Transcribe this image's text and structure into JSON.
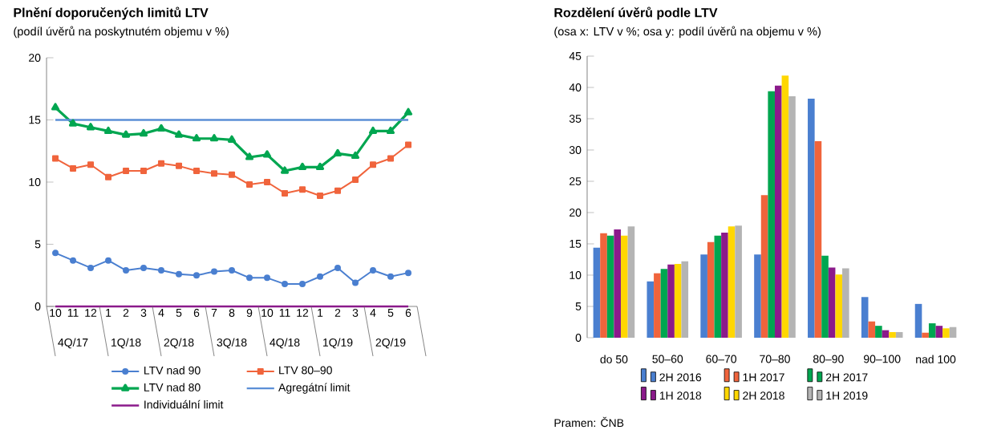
{
  "chart_data": [
    {
      "type": "line",
      "title": "Plnění doporučených limitů LTV",
      "subtitle": "(podíl úvěrů na poskytnutém objemu v %)",
      "categories": [
        "10",
        "11",
        "12",
        "1",
        "2",
        "3",
        "4",
        "5",
        "6",
        "7",
        "8",
        "9",
        "10",
        "11",
        "12",
        "1",
        "2",
        "3",
        "4",
        "5",
        "6"
      ],
      "annotations": [
        "4Q/17",
        "1Q/18",
        "2Q/18",
        "3Q/18",
        "4Q/18",
        "1Q/19",
        "2Q/19"
      ],
      "ylim": [
        0,
        20
      ],
      "yticks": [
        0,
        5,
        10,
        15,
        20
      ],
      "legend": "bottom",
      "series": [
        {
          "name": "LTV nad 90",
          "color": "#4a7fd0",
          "marker": "circle",
          "values": [
            4.3,
            3.7,
            3.1,
            3.7,
            2.9,
            3.1,
            2.9,
            2.6,
            2.5,
            2.8,
            2.9,
            2.3,
            2.3,
            1.8,
            1.8,
            2.4,
            3.1,
            1.9,
            2.9,
            2.4,
            2.7
          ]
        },
        {
          "name": "LTV 80–90",
          "color": "#f0643c",
          "marker": "square",
          "values": [
            11.9,
            11.1,
            11.4,
            10.4,
            10.9,
            10.9,
            11.5,
            11.3,
            10.9,
            10.7,
            10.6,
            9.8,
            10.0,
            9.1,
            9.4,
            8.9,
            9.3,
            10.2,
            11.4,
            11.9,
            13.0
          ]
        },
        {
          "name": "LTV nad 80",
          "color": "#00a650",
          "marker": "triangle",
          "values": [
            16.0,
            14.7,
            14.4,
            14.1,
            13.8,
            13.9,
            14.3,
            13.8,
            13.5,
            13.5,
            13.4,
            12.0,
            12.2,
            10.9,
            11.2,
            11.2,
            12.3,
            12.1,
            14.1,
            14.1,
            15.6
          ]
        },
        {
          "name": "Agregátní limit",
          "color": "#5b8fd6",
          "marker": "none",
          "values": [
            15,
            15,
            15,
            15,
            15,
            15,
            15,
            15,
            15,
            15,
            15,
            15,
            15,
            15,
            15,
            15,
            15,
            15,
            15,
            15,
            15
          ]
        },
        {
          "name": "Individuální limit",
          "color": "#8b1a8b",
          "marker": "none",
          "values": [
            0,
            0,
            0,
            0,
            0,
            0,
            0,
            0,
            0,
            0,
            0,
            0,
            0,
            0,
            0,
            0,
            0,
            0,
            0,
            0,
            0
          ]
        }
      ]
    },
    {
      "type": "bar",
      "title": "Rozdělení úvěrů podle LTV",
      "subtitle": "(osa x: LTV v %; osa y: podíl úvěrů na objemu v %)",
      "categories": [
        "do 50",
        "50–60",
        "60–70",
        "70–80",
        "80–90",
        "90–100",
        "nad 100"
      ],
      "annotations": [
        "Pramen: ČNB"
      ],
      "ylim": [
        0,
        45
      ],
      "yticks": [
        0,
        5,
        10,
        15,
        20,
        25,
        30,
        35,
        40,
        45
      ],
      "legend": "bottom",
      "series": [
        {
          "name": "2H 2016",
          "color": "#4a7fd0",
          "values": [
            14.4,
            9.0,
            13.3,
            13.3,
            38.2,
            6.5,
            5.4
          ]
        },
        {
          "name": "1H 2017",
          "color": "#f0643c",
          "values": [
            16.7,
            10.3,
            15.3,
            22.8,
            31.4,
            2.6,
            0.8
          ]
        },
        {
          "name": "2H 2017",
          "color": "#00a650",
          "values": [
            16.3,
            11.0,
            16.3,
            39.4,
            13.1,
            1.9,
            2.3
          ]
        },
        {
          "name": "1H 2018",
          "color": "#8b1a8b",
          "values": [
            17.3,
            11.7,
            16.8,
            40.3,
            11.2,
            1.2,
            1.9
          ]
        },
        {
          "name": "2H 2018",
          "color": "#ffd700",
          "values": [
            16.3,
            11.8,
            17.8,
            41.9,
            10.1,
            0.9,
            1.5
          ]
        },
        {
          "name": "1H 2019",
          "color": "#b4b4b4",
          "values": [
            17.8,
            12.2,
            17.9,
            38.6,
            11.1,
            0.9,
            1.7
          ]
        }
      ]
    }
  ]
}
